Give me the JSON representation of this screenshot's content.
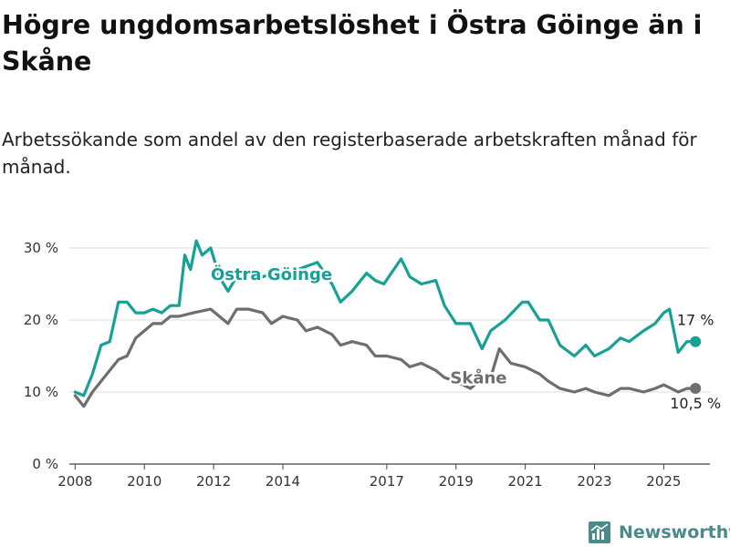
{
  "title": "Högre ungdomsarbetslöshet i Östra Göinge än i Skåne",
  "subtitle": "Arbetssökande som andel av den registerbaserade arbetskraften månad för månad.",
  "brand": {
    "name": "Newsworthy",
    "icon": "newsworthy-logo-icon",
    "color": "#4a8a88"
  },
  "colors": {
    "accent": "#16a196",
    "secondary": "#6d6d72",
    "grid": "#dcdcdc",
    "axis": "#444444"
  },
  "chart_data": {
    "type": "line",
    "title": "Högre ungdomsarbetslöshet i Östra Göinge än i Skåne",
    "subtitle": "Arbetssökande som andel av den registerbaserade arbetskraften månad för månad.",
    "xlabel": "",
    "ylabel": "",
    "xlim": [
      "2007-11",
      "2026-05"
    ],
    "ylim": [
      0,
      30
    ],
    "y_ticks": [
      0,
      10,
      20,
      30
    ],
    "y_tick_labels": [
      "0 %",
      "10 %",
      "20 %",
      "30 %"
    ],
    "x_ticks": [
      "2008-01",
      "2010-01",
      "2012-01",
      "2014-01",
      "2017-01",
      "2019-01",
      "2021-01",
      "2023-01",
      "2025-01"
    ],
    "x_tick_labels": [
      "2008",
      "2010",
      "2012",
      "2014",
      "2017",
      "2019",
      "2021",
      "2023",
      "2025"
    ],
    "grid": "horizontal",
    "legend": "inline labels",
    "series": [
      {
        "name": "Östra Göinge",
        "color": "#16a196",
        "end_label": "17 %",
        "points": [
          [
            "2008-01",
            10
          ],
          [
            "2008-04",
            9.5
          ],
          [
            "2008-07",
            12.5
          ],
          [
            "2008-10",
            16.5
          ],
          [
            "2009-01",
            17
          ],
          [
            "2009-04",
            22.5
          ],
          [
            "2009-07",
            22.5
          ],
          [
            "2009-10",
            21
          ],
          [
            "2010-01",
            21
          ],
          [
            "2010-04",
            21.5
          ],
          [
            "2010-07",
            21
          ],
          [
            "2010-10",
            22
          ],
          [
            "2011-01",
            22
          ],
          [
            "2011-03",
            29
          ],
          [
            "2011-05",
            27
          ],
          [
            "2011-07",
            31
          ],
          [
            "2011-09",
            29
          ],
          [
            "2011-12",
            30
          ],
          [
            "2012-03",
            26
          ],
          [
            "2012-06",
            24
          ],
          [
            "2012-09",
            26
          ],
          [
            "2013-01",
            27
          ],
          [
            "2013-06",
            26
          ],
          [
            "2014-01",
            27
          ],
          [
            "2014-06",
            27
          ],
          [
            "2015-01",
            28
          ],
          [
            "2015-06",
            25
          ],
          [
            "2015-09",
            22.5
          ],
          [
            "2016-01",
            24
          ],
          [
            "2016-06",
            26.5
          ],
          [
            "2016-09",
            25.5
          ],
          [
            "2016-12",
            25
          ],
          [
            "2017-06",
            28.5
          ],
          [
            "2017-09",
            26
          ],
          [
            "2018-01",
            25
          ],
          [
            "2018-06",
            25.5
          ],
          [
            "2018-09",
            22
          ],
          [
            "2019-01",
            19.5
          ],
          [
            "2019-06",
            19.5
          ],
          [
            "2019-10",
            16
          ],
          [
            "2020-01",
            18.5
          ],
          [
            "2020-06",
            20
          ],
          [
            "2020-12",
            22.5
          ],
          [
            "2021-02",
            22.5
          ],
          [
            "2021-06",
            20
          ],
          [
            "2021-09",
            20
          ],
          [
            "2022-01",
            16.5
          ],
          [
            "2022-06",
            15
          ],
          [
            "2022-10",
            16.5
          ],
          [
            "2023-01",
            15
          ],
          [
            "2023-06",
            16
          ],
          [
            "2023-10",
            17.5
          ],
          [
            "2024-01",
            17
          ],
          [
            "2024-06",
            18.5
          ],
          [
            "2024-10",
            19.5
          ],
          [
            "2025-01",
            21
          ],
          [
            "2025-03",
            21.5
          ],
          [
            "2025-06",
            15.5
          ],
          [
            "2025-09",
            17
          ],
          [
            "2025-12",
            17
          ]
        ]
      },
      {
        "name": "Skåne",
        "color": "#6d6d72",
        "end_label": "10,5 %",
        "points": [
          [
            "2008-01",
            9.5
          ],
          [
            "2008-04",
            8
          ],
          [
            "2008-07",
            10
          ],
          [
            "2008-10",
            11.5
          ],
          [
            "2009-01",
            13
          ],
          [
            "2009-04",
            14.5
          ],
          [
            "2009-07",
            15
          ],
          [
            "2009-10",
            17.5
          ],
          [
            "2010-01",
            18.5
          ],
          [
            "2010-04",
            19.5
          ],
          [
            "2010-07",
            19.5
          ],
          [
            "2010-10",
            20.5
          ],
          [
            "2011-01",
            20.5
          ],
          [
            "2011-06",
            21
          ],
          [
            "2011-12",
            21.5
          ],
          [
            "2012-03",
            20.5
          ],
          [
            "2012-06",
            19.5
          ],
          [
            "2012-09",
            21.5
          ],
          [
            "2013-01",
            21.5
          ],
          [
            "2013-06",
            21
          ],
          [
            "2013-09",
            19.5
          ],
          [
            "2014-01",
            20.5
          ],
          [
            "2014-06",
            20
          ],
          [
            "2014-09",
            18.5
          ],
          [
            "2015-01",
            19
          ],
          [
            "2015-06",
            18
          ],
          [
            "2015-09",
            16.5
          ],
          [
            "2016-01",
            17
          ],
          [
            "2016-06",
            16.5
          ],
          [
            "2016-09",
            15
          ],
          [
            "2017-01",
            15
          ],
          [
            "2017-06",
            14.5
          ],
          [
            "2017-09",
            13.5
          ],
          [
            "2018-01",
            14
          ],
          [
            "2018-06",
            13
          ],
          [
            "2018-09",
            12
          ],
          [
            "2019-01",
            11.5
          ],
          [
            "2019-06",
            10.5
          ],
          [
            "2019-09",
            11.5
          ],
          [
            "2020-01",
            12
          ],
          [
            "2020-04",
            16
          ],
          [
            "2020-08",
            14
          ],
          [
            "2021-01",
            13.5
          ],
          [
            "2021-06",
            12.5
          ],
          [
            "2021-09",
            11.5
          ],
          [
            "2022-01",
            10.5
          ],
          [
            "2022-06",
            10
          ],
          [
            "2022-10",
            10.5
          ],
          [
            "2023-01",
            10
          ],
          [
            "2023-06",
            9.5
          ],
          [
            "2023-10",
            10.5
          ],
          [
            "2024-01",
            10.5
          ],
          [
            "2024-06",
            10
          ],
          [
            "2024-10",
            10.5
          ],
          [
            "2025-01",
            11
          ],
          [
            "2025-06",
            10
          ],
          [
            "2025-09",
            10.5
          ],
          [
            "2025-12",
            10.5
          ]
        ]
      }
    ]
  }
}
